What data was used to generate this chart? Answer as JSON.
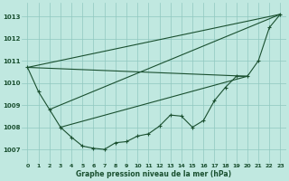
{
  "bg_color": "#c0e8e0",
  "grid_color": "#90c8c0",
  "line_color": "#1a5030",
  "title": "Graphe pression niveau de la mer (hPa)",
  "xlim": [
    -0.5,
    23.5
  ],
  "ylim": [
    1006.4,
    1013.6
  ],
  "yticks": [
    1007,
    1008,
    1009,
    1010,
    1011,
    1012,
    1013
  ],
  "xticks": [
    0,
    1,
    2,
    3,
    4,
    5,
    6,
    7,
    8,
    9,
    10,
    11,
    12,
    13,
    14,
    15,
    16,
    17,
    18,
    19,
    20,
    21,
    22,
    23
  ],
  "wavy": {
    "x": [
      0,
      1,
      2,
      3,
      4,
      5,
      6,
      7,
      8,
      9,
      10,
      11,
      12,
      13,
      14,
      15,
      16,
      17,
      18,
      19,
      20,
      21,
      22,
      23
    ],
    "y": [
      1010.7,
      1009.6,
      1008.8,
      1008.0,
      1007.55,
      1007.15,
      1007.05,
      1007.0,
      1007.3,
      1007.35,
      1007.6,
      1007.7,
      1008.05,
      1008.55,
      1008.5,
      1008.0,
      1008.3,
      1009.2,
      1009.8,
      1010.3,
      1010.3,
      1011.0,
      1012.5,
      1013.1
    ]
  },
  "line1": {
    "x": [
      0,
      23
    ],
    "y": [
      1010.7,
      1013.1
    ]
  },
  "line2": {
    "x": [
      2,
      23
    ],
    "y": [
      1008.8,
      1013.1
    ]
  },
  "line3": {
    "x": [
      0,
      20
    ],
    "y": [
      1010.7,
      1010.3
    ]
  },
  "line4": {
    "x": [
      3,
      20
    ],
    "y": [
      1008.0,
      1010.3
    ]
  }
}
